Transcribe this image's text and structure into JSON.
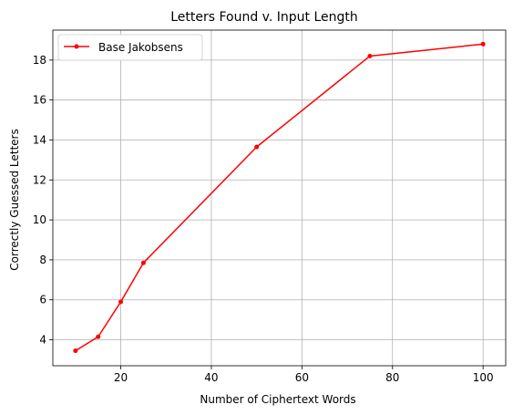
{
  "chart_data": {
    "type": "line",
    "title": "Letters Found v. Input Length",
    "xlabel": "Number of Ciphertext Words",
    "ylabel": "Correctly Guessed Letters",
    "xlim": [
      5,
      105
    ],
    "ylim": [
      2.7,
      19.5
    ],
    "xticks": [
      20,
      40,
      60,
      80,
      100
    ],
    "yticks": [
      4,
      6,
      8,
      10,
      12,
      14,
      16,
      18
    ],
    "grid": true,
    "legend_position": "top-left",
    "series": [
      {
        "name": "Base Jakobsens",
        "color": "#ff0000",
        "marker": "dot",
        "x": [
          10,
          15,
          20,
          25,
          50,
          75,
          100
        ],
        "y": [
          3.45,
          4.15,
          5.9,
          7.85,
          13.65,
          18.2,
          18.8
        ]
      }
    ]
  }
}
